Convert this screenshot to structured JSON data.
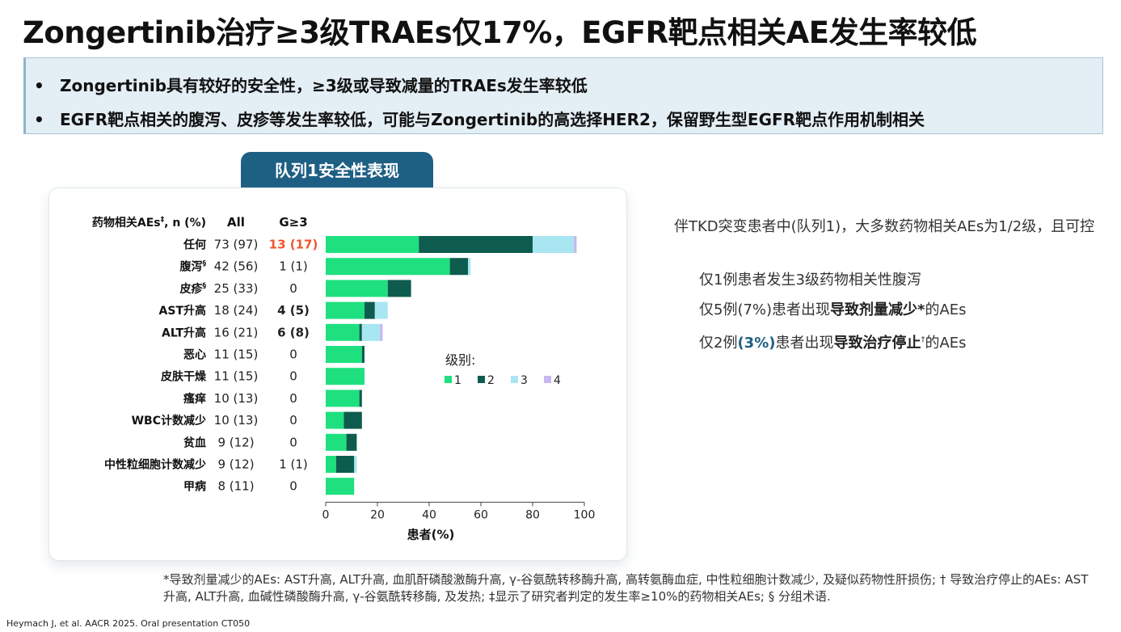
{
  "title": "Zongertinib治疗≥3级TRAEs仅17%，EGFR靶点相关AE发生率较低",
  "bullets": [
    "Zongertinib具有较好的安全性，≥3级或导致减量的TRAEs发生率较低",
    "EGFR靶点相关的腹泻、皮疹等发生率较低，可能与Zongertinib的高选择HER2，保留野生型EGFR靶点作用机制相关"
  ],
  "bullet_mark": "•",
  "cohort_tab": "队列1安全性表现",
  "colors": {
    "grade1": "#1ee07f",
    "grade2": "#0e5c4e",
    "grade3": "#a8e6f2",
    "grade4": "#c7b8ef",
    "highlight_red": "#f0552a",
    "tab_blue": "#1e5f84"
  },
  "chart_data": {
    "type": "bar",
    "orientation": "horizontal",
    "stacked": true,
    "header": {
      "label": "药物相关AEs",
      "label_sup": "‡",
      "label_suffix": ", n (%)",
      "all": "All",
      "g3": "G≥3"
    },
    "categories": [
      "任何",
      "腹泻",
      "皮疹",
      "AST升高",
      "ALT升高",
      "恶心",
      "皮肤干燥",
      "瘙痒",
      "WBC计数减少",
      "贫血",
      "中性粒细胞计数减少",
      "甲病"
    ],
    "category_sups": [
      "",
      "§",
      "§",
      "",
      "",
      "",
      "",
      "",
      "",
      "",
      "",
      ""
    ],
    "all_values": [
      "73 (97)",
      "42 (56)",
      "25 (33)",
      "18 (24)",
      "16 (21)",
      "11 (15)",
      "11 (15)",
      "10 (13)",
      "10 (13)",
      "9 (12)",
      "9 (12)",
      "8 (11)"
    ],
    "g3_values": [
      "13 (17)",
      "1 (1)",
      "0",
      "4 (5)",
      "6 (8)",
      "0",
      "0",
      "0",
      "0",
      "0",
      "1 (1)",
      "0"
    ],
    "g3_style": [
      "red",
      "normal",
      "normal",
      "bold",
      "bold",
      "normal",
      "normal",
      "normal",
      "normal",
      "normal",
      "normal",
      "normal"
    ],
    "series": [
      {
        "name": "1",
        "values": [
          36,
          48,
          24,
          15,
          13,
          14,
          15,
          13,
          7,
          8,
          4,
          11
        ]
      },
      {
        "name": "2",
        "values": [
          44,
          7,
          9,
          4,
          1,
          1,
          0,
          1,
          7,
          4,
          7,
          0
        ]
      },
      {
        "name": "3",
        "values": [
          16,
          1,
          0,
          5,
          7,
          0,
          0,
          0,
          0,
          0,
          1,
          0
        ]
      },
      {
        "name": "4",
        "values": [
          1,
          0,
          0,
          0,
          1,
          0,
          0,
          0,
          0,
          0,
          0,
          0
        ]
      }
    ],
    "legend_title": "级别:",
    "legend_position": "center-right",
    "xlabel": "患者(%)",
    "xlim": [
      0,
      100
    ],
    "xticks": [
      0,
      20,
      40,
      60,
      80,
      100
    ],
    "grid": false
  },
  "right_text": {
    "intro": "伴TKD突变患者中(队列1)，大多数药物相关AEs为1/2级，且可控",
    "line1": "仅1例患者发生3级药物相关性腹泻",
    "line2_pre": "仅5例(7%)患者出现",
    "line2_bold": "导致剂量减少*",
    "line2_post": "的AEs",
    "line3_pre": "仅2例",
    "line3_blue": "(3%)",
    "line3_mid": "患者出现",
    "line3_bold": "导致治疗停止",
    "line3_sup": "†",
    "line3_post": "的AEs"
  },
  "footnote": "*导致剂量减少的AEs: AST升高, ALT升高, 血肌酐磷酸激酶升高, γ-谷氨酰转移酶升高, 高转氨酶血症, 中性粒细胞计数减少, 及疑似药物性肝损伤; † 导致治疗停止的AEs: AST 升高, ALT升高, 血碱性磷酸酶升高, γ-谷氨酰转移酶, 及发热; ‡显示了研究者判定的发生率≥10%的药物相关AEs; § 分组术语.",
  "citation": "Heymach J, et al. AACR 2025. Oral presentation CT050"
}
